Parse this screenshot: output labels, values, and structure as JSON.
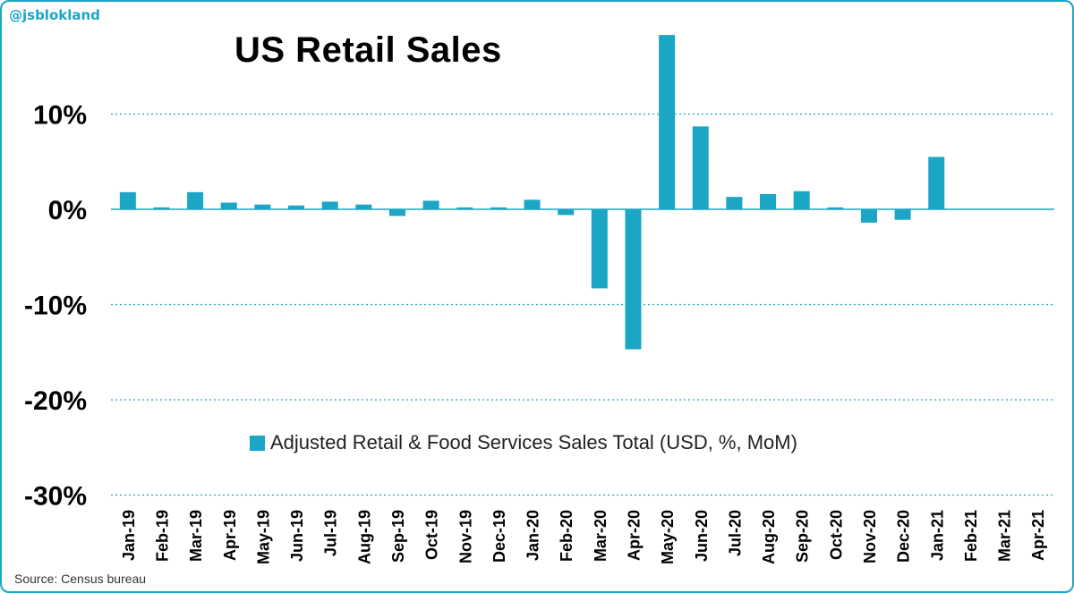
{
  "handle": "@jsblokland",
  "source": "Source: Census bureau",
  "chart_data": {
    "type": "bar",
    "title": "US Retail Sales",
    "xlabel": "",
    "ylabel": "",
    "ylim": [
      -30,
      20
    ],
    "yticks": [
      10,
      0,
      -10,
      -20,
      -30
    ],
    "ytick_labels": [
      "10%",
      "0%",
      "-10%",
      "-20%",
      "-30%"
    ],
    "grid": true,
    "legend_position": "center",
    "color": "#1aa6c4",
    "categories": [
      "Jan-19",
      "Feb-19",
      "Mar-19",
      "Apr-19",
      "May-19",
      "Jun-19",
      "Jul-19",
      "Aug-19",
      "Sep-19",
      "Oct-19",
      "Nov-19",
      "Dec-19",
      "Jan-20",
      "Feb-20",
      "Mar-20",
      "Apr-20",
      "May-20",
      "Jun-20",
      "Jul-20",
      "Aug-20",
      "Sep-20",
      "Oct-20",
      "Nov-20",
      "Dec-20",
      "Jan-21",
      "Feb-21",
      "Mar-21",
      "Apr-21"
    ],
    "series": [
      {
        "name": "Adjusted Retail & Food Services Sales Total (USD, %, MoM)",
        "values": [
          1.8,
          0.2,
          1.8,
          0.7,
          0.5,
          0.4,
          0.8,
          0.5,
          -0.7,
          0.9,
          0.2,
          0.2,
          1.0,
          -0.6,
          -8.3,
          -14.7,
          18.3,
          8.7,
          1.3,
          1.6,
          1.9,
          0.2,
          -1.4,
          -1.1,
          5.5,
          null,
          null,
          null
        ]
      }
    ]
  }
}
